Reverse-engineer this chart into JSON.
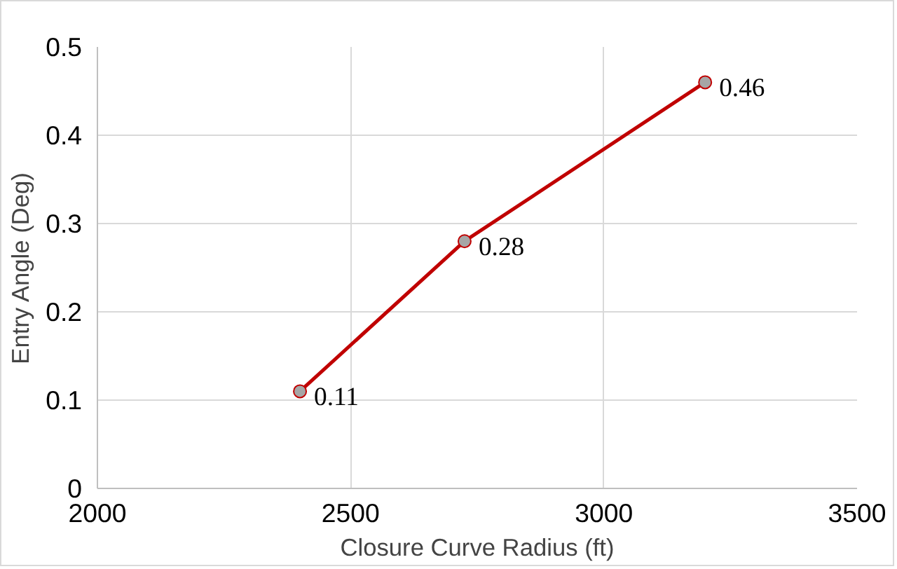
{
  "chart_data": {
    "type": "line",
    "xlabel": "Closure Curve Radius (ft)",
    "ylabel": "Entry Angle (Deg)",
    "x": [
      2400,
      2725,
      3200
    ],
    "series": [
      {
        "color": "#c00000",
        "values": [
          0.11,
          0.28,
          0.46
        ]
      }
    ],
    "xlim": [
      2000,
      3500
    ],
    "xticks": [
      2000,
      2500,
      3000,
      3500
    ],
    "ylim": [
      0,
      0.5
    ],
    "yticks": [
      0,
      0.1,
      0.2,
      0.3,
      0.4,
      0.5
    ],
    "grid": true,
    "marker": "circle",
    "line_style": "solid",
    "data_labels": true
  }
}
